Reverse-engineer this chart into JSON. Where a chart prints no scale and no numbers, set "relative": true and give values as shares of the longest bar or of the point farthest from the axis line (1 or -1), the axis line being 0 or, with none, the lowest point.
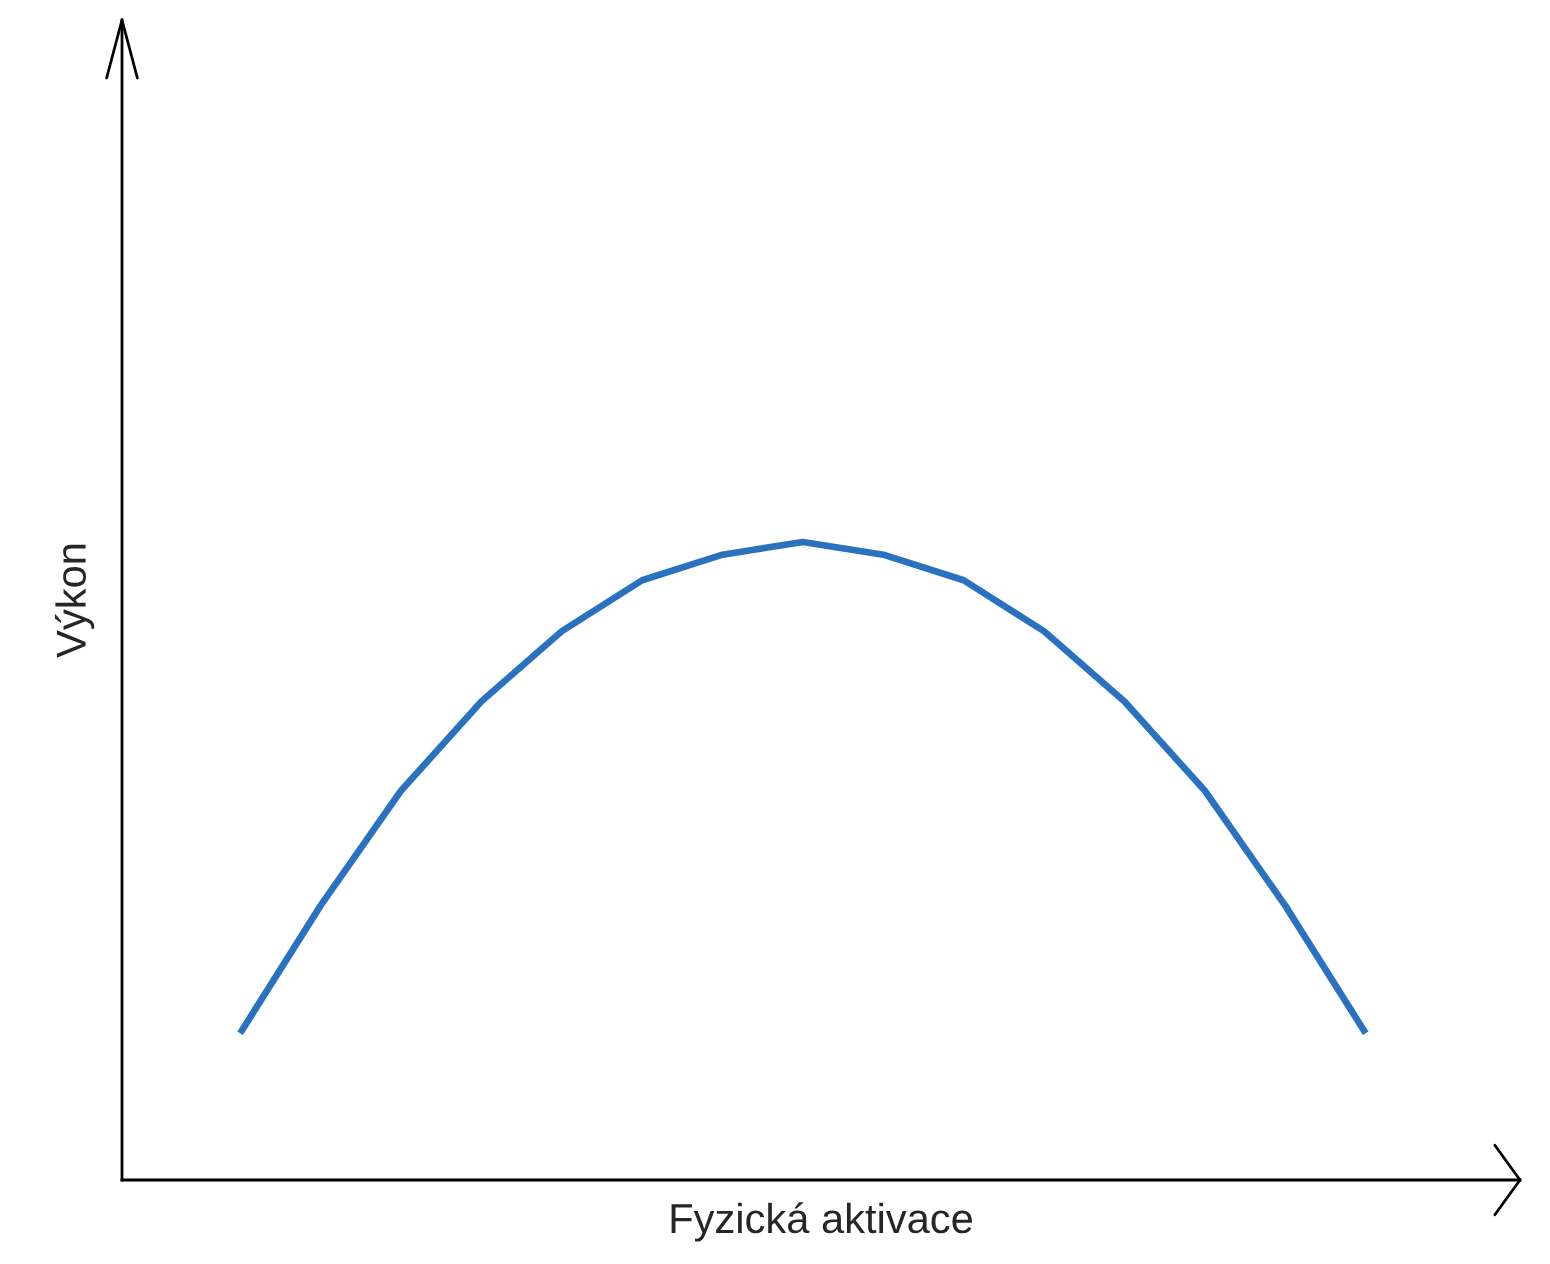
{
  "chart_data": {
    "type": "line",
    "relative": true,
    "xlabel": "Fyzická aktivace",
    "ylabel": "Výkon",
    "tick_labels": false,
    "grid": false,
    "legend": false,
    "marker": "none",
    "line_style": "solid",
    "categories": [
      null,
      null,
      null,
      null,
      null,
      null,
      null,
      null,
      null,
      null,
      null,
      null,
      null,
      null,
      null
    ],
    "series": [
      {
        "color": "#2a72c0",
        "values": [
          0.23,
          0.43,
          0.61,
          0.75,
          0.86,
          0.94,
          0.98,
          1,
          0.98,
          0.94,
          0.86,
          0.75,
          0.61,
          0.43,
          0.23
        ]
      }
    ]
  }
}
